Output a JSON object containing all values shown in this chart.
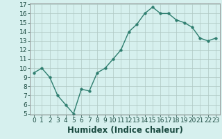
{
  "x": [
    0,
    1,
    2,
    3,
    4,
    5,
    6,
    7,
    8,
    9,
    10,
    11,
    12,
    13,
    14,
    15,
    16,
    17,
    18,
    19,
    20,
    21,
    22,
    23
  ],
  "y": [
    9.5,
    10.0,
    9.0,
    7.0,
    6.0,
    5.0,
    7.7,
    7.5,
    9.5,
    10.0,
    11.0,
    12.0,
    14.0,
    14.8,
    16.0,
    16.7,
    16.0,
    16.0,
    15.3,
    15.0,
    14.5,
    13.3,
    13.0,
    13.3
  ],
  "xlabel": "Humidex (Indice chaleur)",
  "ylim": [
    5,
    17
  ],
  "xlim": [
    -0.5,
    23.5
  ],
  "yticks": [
    5,
    6,
    7,
    8,
    9,
    10,
    11,
    12,
    13,
    14,
    15,
    16,
    17
  ],
  "xticks": [
    0,
    1,
    2,
    3,
    4,
    5,
    6,
    7,
    8,
    9,
    10,
    11,
    12,
    13,
    14,
    15,
    16,
    17,
    18,
    19,
    20,
    21,
    22,
    23
  ],
  "xtick_labels": [
    "0",
    "1",
    "2",
    "3",
    "4",
    "5",
    "6",
    "7",
    "8",
    "9",
    "10",
    "11",
    "12",
    "13",
    "14",
    "15",
    "16",
    "17",
    "18",
    "19",
    "20",
    "21",
    "22",
    "23"
  ],
  "line_color": "#2d7d6e",
  "marker_color": "#2d7d6e",
  "bg_color": "#d6f0ee",
  "grid_color": "#b0c8c4",
  "tick_fontsize": 6.5,
  "xlabel_fontsize": 8.5,
  "marker_size": 2.5,
  "line_width": 1.0
}
